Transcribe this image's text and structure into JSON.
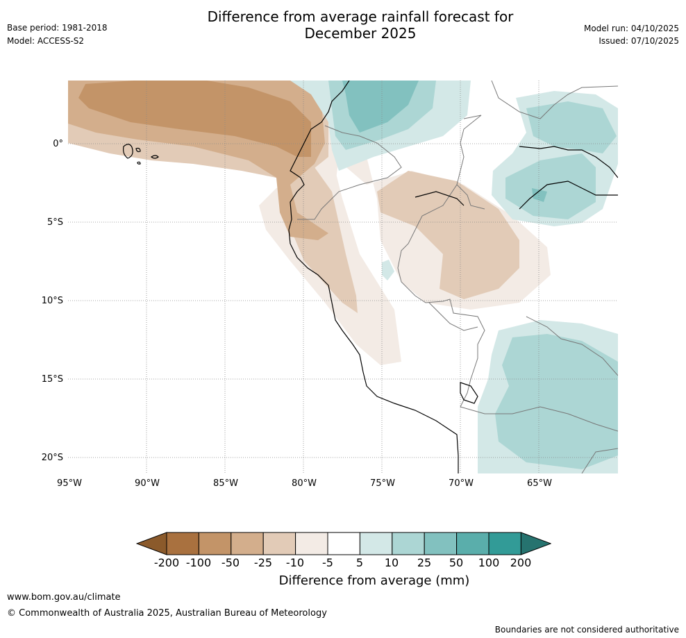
{
  "header": {
    "title_line1": "Difference from average rainfall forecast for",
    "title_line2": "December 2025",
    "base_period": "Base period: 1981-2018",
    "model": "Model: ACCESS-S2",
    "model_run": "Model run: 04/10/2025",
    "issued": "Issued: 07/10/2025"
  },
  "map": {
    "lat_labels": [
      "0°",
      "5°S",
      "10°S",
      "15°S",
      "20°S"
    ],
    "lon_labels": [
      "95°W",
      "90°W",
      "85°W",
      "80°W",
      "75°W",
      "70°W",
      "65°W"
    ]
  },
  "colorbar": {
    "title": "Difference from average (mm)",
    "tick_labels": [
      "-200",
      "-100",
      "-50",
      "-25",
      "-10",
      "-5",
      "5",
      "10",
      "25",
      "50",
      "100",
      "200"
    ],
    "colors": {
      "lt200": "#8b5a2b",
      "m200_m100": "#a9713f",
      "m100_m50": "#c39468",
      "m50_m25": "#d3ae8c",
      "m25_m10": "#e2cbb7",
      "m10_m5": "#f3ebe5",
      "m5_5": "#ffffff",
      "p5_10": "#d3e8e7",
      "p10_25": "#acd6d4",
      "p25_50": "#82c1bf",
      "p50_100": "#5aaeab",
      "p100_200": "#329b97",
      "gt200": "#26736f"
    }
  },
  "footer": {
    "website": "www.bom.gov.au/climate",
    "copyright": "© Commonwealth of Australia 2025, Australian Bureau of Meteorology",
    "disclaimer": "Boundaries are not considered authoritative"
  }
}
